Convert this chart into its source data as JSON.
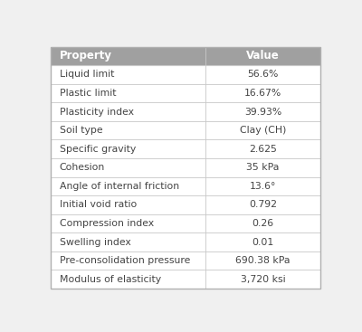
{
  "headers": [
    "Property",
    "Value"
  ],
  "rows": [
    [
      "Liquid limit",
      "56.6%"
    ],
    [
      "Plastic limit",
      "16.67%"
    ],
    [
      "Plasticity index",
      "39.93%"
    ],
    [
      "Soil type",
      "Clay (CH)"
    ],
    [
      "Specific gravity",
      "2.625"
    ],
    [
      "Cohesion",
      "35 kPa"
    ],
    [
      "Angle of internal friction",
      "13.6°"
    ],
    [
      "Initial void ratio",
      "0.792"
    ],
    [
      "Compression index",
      "0.26"
    ],
    [
      "Swelling index",
      "0.01"
    ],
    [
      "Pre-consolidation pressure",
      "690.38 kPa"
    ],
    [
      "Modulus of elasticity",
      "3,720 ksi"
    ]
  ],
  "header_bg": "#a0a0a0",
  "header_text_color": "#ffffff",
  "row_bg": "#ffffff",
  "border_color": "#c8c8c8",
  "text_color": "#444444",
  "col_split": 0.575,
  "header_fontsize": 8.5,
  "row_fontsize": 7.8,
  "fig_bg": "#f0f0f0",
  "table_bg": "#ffffff",
  "outer_border_color": "#b0b0b0"
}
